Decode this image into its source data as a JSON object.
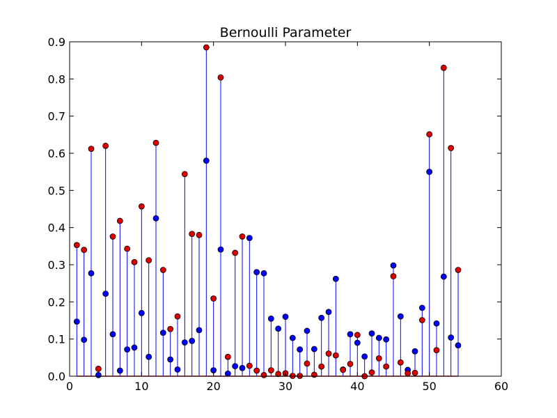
{
  "chart_data": {
    "type": "scatter",
    "title": "Bernoulli Parameter",
    "xlabel": "",
    "ylabel": "",
    "xlim": [
      0,
      60
    ],
    "ylim": [
      0,
      0.9
    ],
    "x_ticks": [
      "0",
      "10",
      "20",
      "30",
      "40",
      "50",
      "60"
    ],
    "y_ticks": [
      "0.0",
      "0.1",
      "0.2",
      "0.3",
      "0.4",
      "0.5",
      "0.6",
      "0.7",
      "0.8",
      "0.9"
    ],
    "grid": false,
    "legend": "none",
    "x": [
      1,
      2,
      3,
      4,
      5,
      6,
      7,
      8,
      9,
      10,
      11,
      12,
      13,
      14,
      15,
      16,
      17,
      18,
      19,
      20,
      21,
      22,
      23,
      24,
      25,
      26,
      27,
      28,
      29,
      30,
      31,
      32,
      33,
      34,
      35,
      36,
      37,
      38,
      39,
      40,
      41,
      42,
      43,
      44,
      45,
      46,
      47,
      48,
      49,
      50,
      51,
      52,
      53,
      54
    ],
    "series": [
      {
        "marker_color": "#0000ff",
        "values": [
          0.147,
          0.098,
          0.277,
          0.003,
          0.222,
          0.113,
          0.015,
          0.072,
          0.077,
          0.17,
          0.052,
          0.425,
          0.117,
          0.045,
          0.018,
          0.091,
          0.095,
          0.124,
          0.58,
          0.016,
          0.341,
          0.007,
          0.027,
          0.022,
          0.372,
          0.28,
          0.277,
          0.155,
          0.128,
          0.16,
          0.103,
          0.072,
          0.122,
          0.073,
          0.157,
          0.173,
          0.262,
          0.018,
          0.113,
          0.09,
          0.053,
          0.115,
          0.103,
          0.099,
          0.298,
          0.161,
          0.017,
          0.067,
          0.184,
          0.55,
          0.142,
          0.268,
          0.104,
          0.083
        ]
      },
      {
        "marker_color": "#dd0000",
        "values": [
          0.353,
          0.34,
          0.612,
          0.02,
          0.62,
          0.376,
          0.418,
          0.343,
          0.307,
          0.457,
          0.312,
          0.628,
          0.286,
          0.127,
          0.161,
          0.544,
          0.383,
          0.38,
          0.885,
          0.209,
          0.804,
          0.052,
          0.332,
          0.376,
          0.028,
          0.015,
          0.003,
          0.016,
          0.006,
          0.008,
          0.001,
          0.001,
          0.034,
          0.004,
          0.026,
          0.061,
          0.056,
          0.017,
          0.033,
          0.111,
          0.0,
          0.01,
          0.048,
          0.026,
          0.269,
          0.037,
          0.008,
          0.009,
          0.151,
          0.651,
          0.07,
          0.83,
          0.614,
          0.286
        ]
      }
    ],
    "stem_color": "#0000ff",
    "baseline_color": "#dd0000"
  }
}
